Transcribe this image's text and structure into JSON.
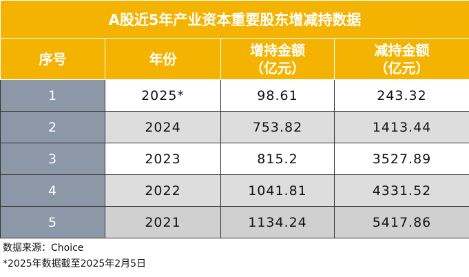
{
  "header": {
    "title": "A股近5年产业资本重要股东增减持数据"
  },
  "table": {
    "columns": [
      "序号",
      "年份",
      "增持金额（亿元）",
      "减持金额（亿元）"
    ],
    "rows": [
      [
        "1",
        "2025*",
        "98.61",
        "243.32"
      ],
      [
        "2",
        "2024",
        "753.82",
        "1413.44"
      ],
      [
        "3",
        "2023",
        "815.2",
        "3527.89"
      ],
      [
        "4",
        "2022",
        "1041.81",
        "4331.52"
      ],
      [
        "5",
        "2021",
        "1134.24",
        "5417.86"
      ]
    ]
  },
  "notes": [
    "数据来源：Choice",
    "*2025年数据截至2025年2月5日"
  ]
}
